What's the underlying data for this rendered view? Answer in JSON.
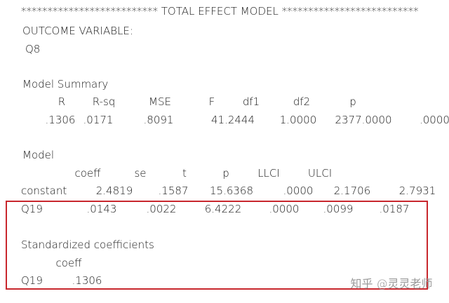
{
  "header": {
    "title": "************************** TOTAL EFFECT MODEL **************************",
    "outcome_label": "OUTCOME VARIABLE:",
    "outcome": "Q8"
  },
  "model_summary": {
    "title": "Model Summary",
    "columns": [
      "R",
      "R-sq",
      "MSE",
      "F",
      "df1",
      "df2",
      "p"
    ],
    "values": [
      ".1306",
      ".0171",
      ".8091",
      "41.2444",
      "1.0000",
      "2377.0000",
      ".0000"
    ]
  },
  "model": {
    "title": "Model",
    "columns": [
      "coeff",
      "se",
      "t",
      "p",
      "LLCI",
      "ULCI"
    ],
    "rows": [
      [
        "constant",
        "2.4819",
        ".1587",
        "15.6368",
        ".0000",
        "2.1706",
        "2.7931"
      ],
      [
        "Q19",
        ".0143",
        ".0022",
        "6.4222",
        ".0000",
        ".0099",
        ".0187"
      ]
    ]
  },
  "standardized": {
    "title": "Standardized coefficients",
    "columns": [
      "coeff"
    ],
    "rows": [
      [
        "Q19",
        ".1306"
      ]
    ]
  },
  "watermark": "知乎 @灵灵老师"
}
